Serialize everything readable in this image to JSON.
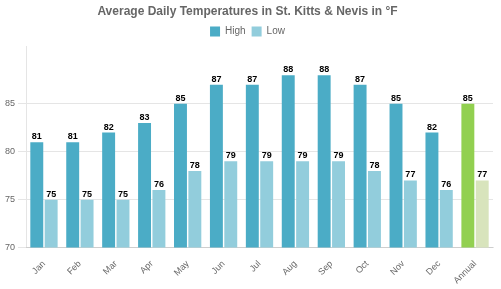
{
  "chart_data": {
    "type": "bar",
    "title": "Average Daily Temperatures in St. Kitts & Nevis in °F",
    "categories": [
      "Jan",
      "Feb",
      "Mar",
      "Apr",
      "May",
      "Jun",
      "Jul",
      "Aug",
      "Sep",
      "Oct",
      "Nov",
      "Dec",
      "Annual"
    ],
    "series": [
      {
        "name": "High",
        "color": "#4bacc6",
        "colors": [
          "#4bacc6",
          "#4bacc6",
          "#4bacc6",
          "#4bacc6",
          "#4bacc6",
          "#4bacc6",
          "#4bacc6",
          "#4bacc6",
          "#4bacc6",
          "#4bacc6",
          "#4bacc6",
          "#4bacc6",
          "#92d050"
        ],
        "values": [
          81,
          81,
          82,
          83,
          85,
          87,
          87,
          88,
          88,
          87,
          85,
          82,
          85
        ]
      },
      {
        "name": "Low",
        "color": "#92cddc",
        "colors": [
          "#92cddc",
          "#92cddc",
          "#92cddc",
          "#92cddc",
          "#92cddc",
          "#92cddc",
          "#92cddc",
          "#92cddc",
          "#92cddc",
          "#92cddc",
          "#92cddc",
          "#92cddc",
          "#d8e4bc"
        ],
        "values": [
          75,
          75,
          75,
          76,
          78,
          79,
          79,
          79,
          79,
          78,
          77,
          76,
          77
        ]
      }
    ],
    "ylim": [
      70,
      91
    ],
    "yticks": [
      70,
      75,
      80,
      85
    ],
    "grid": true,
    "data_labels": true
  }
}
